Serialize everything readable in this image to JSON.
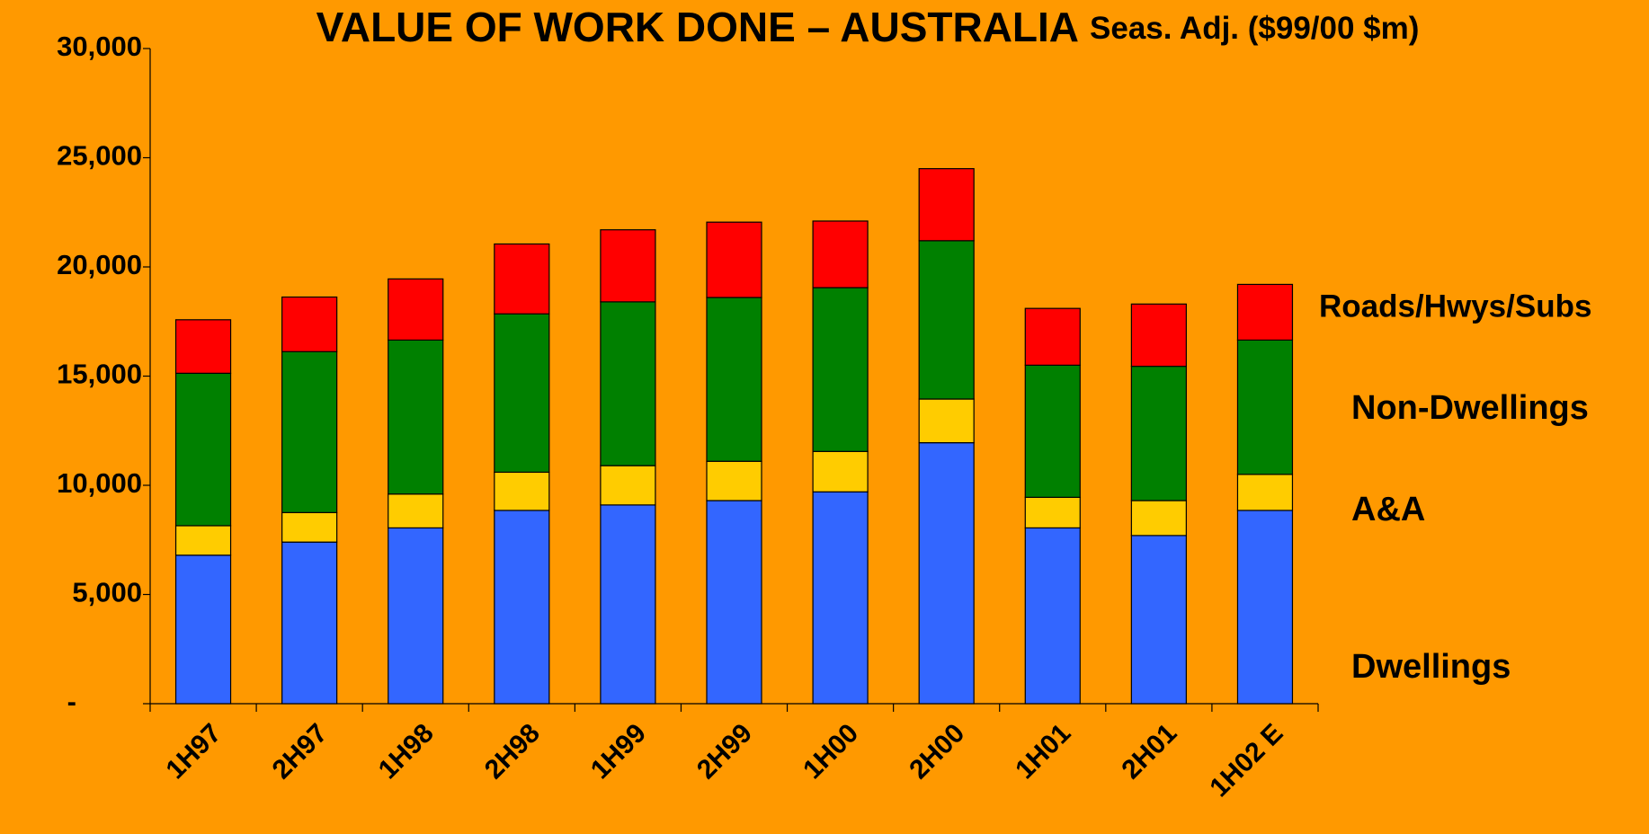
{
  "chart_data": {
    "type": "stacked_bar",
    "title": "VALUE OF WORK DONE – AUSTRALIA",
    "subtitle": "Seas. Adj. ($99/00 $m)",
    "categories": [
      "1H97",
      "2H97",
      "1H98",
      "2H98",
      "1H99",
      "2H99",
      "1H00",
      "2H00",
      "1H01",
      "2H01",
      "1H02 E"
    ],
    "series": [
      {
        "name": "Dwellings",
        "color": "#3366ff",
        "values": [
          6800,
          7400,
          8050,
          8850,
          9100,
          9300,
          9700,
          11950,
          8050,
          7700,
          8850
        ]
      },
      {
        "name": "A&A",
        "color": "#ffcc00",
        "values": [
          1350,
          1350,
          1550,
          1750,
          1800,
          1800,
          1850,
          2000,
          1400,
          1600,
          1650
        ]
      },
      {
        "name": "Non-Dwellings",
        "color": "#008000",
        "values": [
          6980,
          7370,
          7050,
          7250,
          7500,
          7500,
          7500,
          7250,
          6050,
          6150,
          6150
        ]
      },
      {
        "name": "Roads/Hwys/Subs",
        "color": "#ff0000",
        "values": [
          2450,
          2500,
          2800,
          3200,
          3300,
          3450,
          3050,
          3300,
          2600,
          2850,
          2550
        ]
      }
    ],
    "ylim": [
      0,
      30000
    ],
    "yticks": [
      {
        "value": 0,
        "label": "-"
      },
      {
        "value": 5000,
        "label": "5,000"
      },
      {
        "value": 10000,
        "label": "10,000"
      },
      {
        "value": 15000,
        "label": "15,000"
      },
      {
        "value": 20000,
        "label": "20,000"
      },
      {
        "value": 25000,
        "label": "25,000"
      },
      {
        "value": 30000,
        "label": "30,000"
      }
    ]
  }
}
